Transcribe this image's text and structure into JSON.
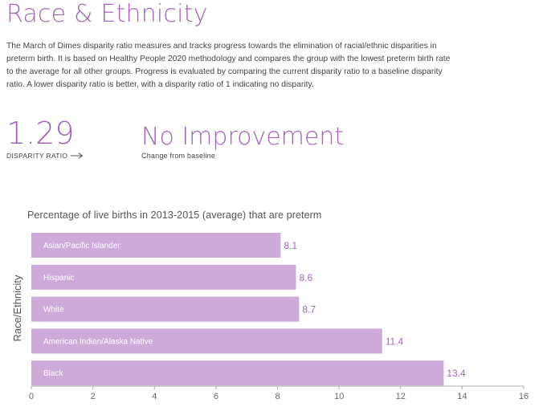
{
  "page": {
    "title": "Race & Ethnicity",
    "description": "The March of Dimes disparity ratio measures and tracks progress towards the elimination of racial/ethnic disparities in preterm birth. It is based on Healthy People 2020 methodology and compares the group with the lowest preterm birth rate to the average for all other groups. Progress is evaluated by comparing the current disparity ratio to a baseline disparity ratio. A lower disparity ratio is better, with a disparity ratio of 1 indicating no disparity."
  },
  "metrics": {
    "disparity_ratio": "1.29",
    "disparity_ratio_label": "DISPARITY RATIO",
    "status": "No Improvement",
    "status_label": "Change from baseline"
  },
  "colors": {
    "accent": "#a066b5",
    "bar": "#cdaad9",
    "bar_label": "#ffffff",
    "axis": "#aaaaaa",
    "tick_label": "#666666"
  },
  "chart_data": {
    "type": "bar",
    "orientation": "horizontal",
    "title": "Percentage of live births in 2013-2015 (average) that are preterm",
    "xlabel": "",
    "ylabel": "Race/Ethnicity",
    "categories": [
      "Asian/Pacific Islander",
      "Hispanic",
      "White",
      "American Indian/Alaska Native",
      "Black"
    ],
    "values": [
      8.1,
      8.6,
      8.7,
      11.4,
      13.4
    ],
    "value_labels": [
      "8.1",
      "8.6",
      "8.7",
      "11.4",
      "13.4"
    ],
    "xlim": [
      0,
      16
    ],
    "xticks": [
      0,
      2,
      4,
      6,
      8,
      10,
      12,
      14,
      16
    ],
    "grid": false
  }
}
